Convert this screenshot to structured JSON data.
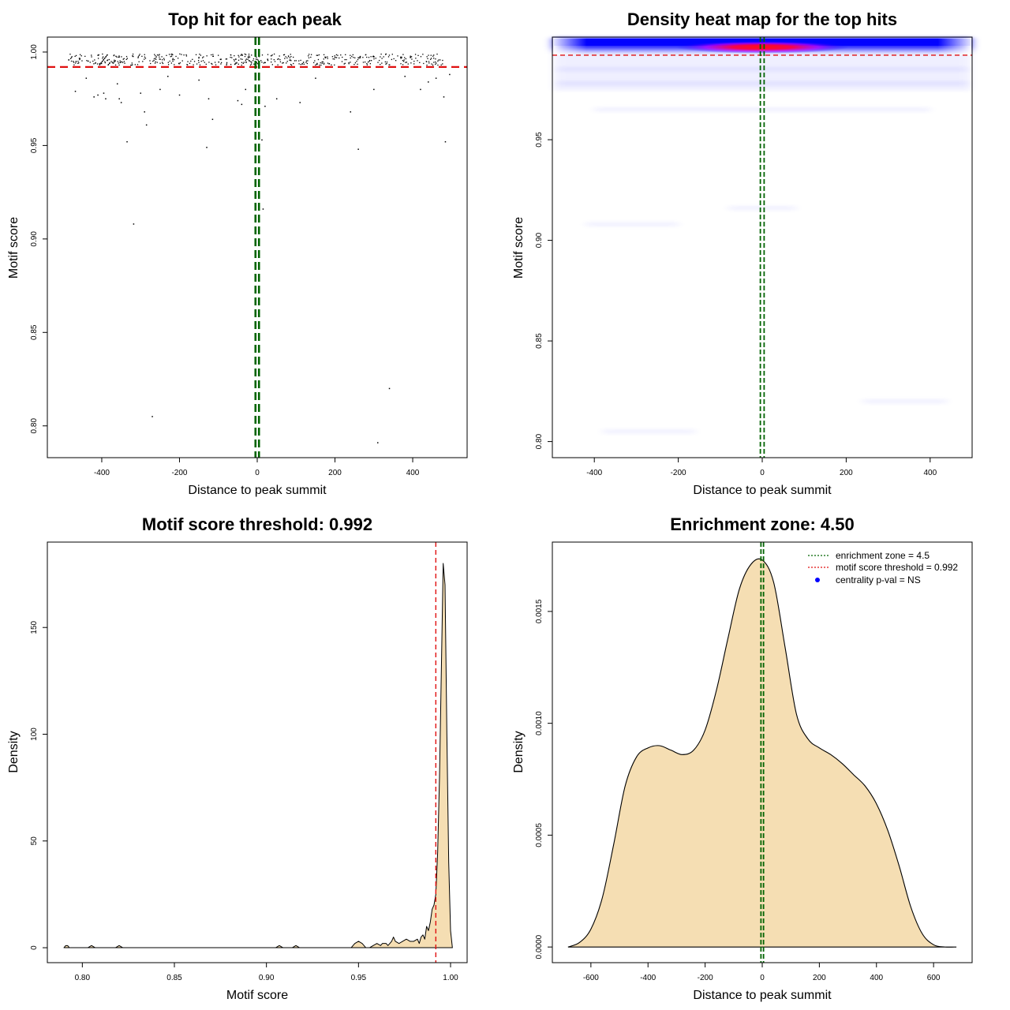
{
  "colors": {
    "threshold_line": "#e01010",
    "zone_line": "#006400",
    "density_fill": "#f5deb3",
    "heat_low": "#0000ff",
    "heat_high": "#ff0000",
    "centrality_dot": "#0000ff"
  },
  "chart_data": [
    {
      "id": "p1",
      "type": "scatter",
      "title": "Top hit for each peak",
      "xlabel": "Distance to peak summit",
      "ylabel": "Motif score",
      "xlim": [
        -540,
        540
      ],
      "ylim": [
        0.783,
        1.008
      ],
      "xticks": [
        -400,
        -200,
        0,
        200,
        400
      ],
      "yticks": [
        0.8,
        0.85,
        0.9,
        0.95,
        1.0
      ],
      "xtick_labels": [
        "-400",
        "-200",
        "0",
        "200",
        "400"
      ],
      "ytick_labels": [
        "0.80",
        "0.85",
        "0.90",
        "0.95",
        "1.00"
      ],
      "threshold": 0.992,
      "zone": [
        -4.5,
        4.5
      ],
      "points": [
        [
          -468,
          0.979
        ],
        [
          -420,
          0.976
        ],
        [
          -410,
          0.977
        ],
        [
          -395,
          0.978
        ],
        [
          -390,
          0.975
        ],
        [
          -360,
          0.983
        ],
        [
          -355,
          0.975
        ],
        [
          -350,
          0.973
        ],
        [
          -335,
          0.952
        ],
        [
          -318,
          0.908
        ],
        [
          -300,
          0.978
        ],
        [
          -290,
          0.968
        ],
        [
          -285,
          0.961
        ],
        [
          -270,
          0.805
        ],
        [
          -250,
          0.98
        ],
        [
          -200,
          0.977
        ],
        [
          -130,
          0.949
        ],
        [
          -125,
          0.975
        ],
        [
          -115,
          0.964
        ],
        [
          -50,
          0.974
        ],
        [
          -40,
          0.972
        ],
        [
          -30,
          0.98
        ],
        [
          -5,
          0.968
        ],
        [
          5,
          0.976
        ],
        [
          12,
          0.953
        ],
        [
          15,
          0.916
        ],
        [
          20,
          0.971
        ],
        [
          50,
          0.975
        ],
        [
          110,
          0.973
        ],
        [
          240,
          0.968
        ],
        [
          260,
          0.948
        ],
        [
          300,
          0.98
        ],
        [
          310,
          0.791
        ],
        [
          340,
          0.82
        ],
        [
          420,
          0.98
        ],
        [
          460,
          0.986
        ],
        [
          480,
          0.976
        ],
        [
          484,
          0.952
        ],
        [
          495,
          0.988
        ],
        [
          440,
          0.984
        ],
        [
          380,
          0.987
        ],
        [
          150,
          0.986
        ],
        [
          -150,
          0.985
        ],
        [
          -230,
          0.987
        ],
        [
          -440,
          0.986
        ]
      ]
    },
    {
      "id": "p2",
      "type": "heatmap",
      "title": "Density heat map for the top hits",
      "xlabel": "Distance to peak summit",
      "ylabel": "Motif score",
      "xlim": [
        -500,
        500
      ],
      "ylim": [
        0.792,
        1.001
      ],
      "xticks": [
        -400,
        -200,
        0,
        200,
        400
      ],
      "yticks": [
        0.8,
        0.85,
        0.9,
        0.95
      ],
      "xtick_labels": [
        "-400",
        "-200",
        "0",
        "200",
        "400"
      ],
      "ytick_labels": [
        "0.80",
        "0.85",
        "0.90",
        "0.95"
      ],
      "threshold": 0.992,
      "zone": [
        -4.5,
        4.5
      ],
      "hotspot": {
        "x": 0,
        "y": 0.996
      },
      "faint_bands": [
        {
          "x0": -490,
          "x1": 490,
          "y": 0.985
        },
        {
          "x0": -490,
          "x1": 490,
          "y": 0.978
        },
        {
          "x0": -400,
          "x1": 400,
          "y": 0.965
        },
        {
          "x0": -420,
          "x1": -200,
          "y": 0.908
        },
        {
          "x0": -380,
          "x1": -160,
          "y": 0.805
        },
        {
          "x0": 240,
          "x1": 440,
          "y": 0.82
        },
        {
          "x0": -80,
          "x1": 80,
          "y": 0.916
        }
      ]
    },
    {
      "id": "p3",
      "type": "area",
      "title": "Motif score threshold: 0.992",
      "xlabel": "Motif score",
      "ylabel": "Density",
      "xlim": [
        0.781,
        1.009
      ],
      "ylim": [
        -7,
        190
      ],
      "xticks": [
        0.8,
        0.85,
        0.9,
        0.95,
        1.0
      ],
      "yticks": [
        0,
        50,
        100,
        150
      ],
      "xtick_labels": [
        "0.80",
        "0.85",
        "0.90",
        "0.95",
        "1.00"
      ],
      "ytick_labels": [
        "0",
        "50",
        "100",
        "150"
      ],
      "threshold": 0.992,
      "x": [
        0.79,
        0.791,
        0.792,
        0.793,
        0.803,
        0.805,
        0.807,
        0.818,
        0.82,
        0.822,
        0.905,
        0.907,
        0.909,
        0.914,
        0.916,
        0.918,
        0.946,
        0.948,
        0.95,
        0.952,
        0.954,
        0.956,
        0.958,
        0.96,
        0.962,
        0.963,
        0.965,
        0.966,
        0.967,
        0.968,
        0.969,
        0.97,
        0.972,
        0.974,
        0.976,
        0.978,
        0.98,
        0.982,
        0.983,
        0.984,
        0.985,
        0.986,
        0.987,
        0.988,
        0.989,
        0.99,
        0.991,
        0.992,
        0.993,
        0.994,
        0.995,
        0.996,
        0.997,
        0.998,
        0.999,
        1.0,
        1.001
      ],
      "y": [
        0,
        1,
        1,
        0,
        0,
        1,
        0,
        0,
        1,
        0,
        0,
        1,
        0,
        0,
        1,
        0,
        0,
        2,
        3,
        2,
        0,
        0,
        1,
        2,
        1,
        2,
        2,
        1,
        2,
        3,
        5,
        3,
        2,
        3,
        4,
        3,
        3,
        4,
        2,
        5,
        6,
        4,
        10,
        8,
        12,
        18,
        20,
        25,
        45,
        80,
        130,
        180,
        170,
        100,
        40,
        8,
        0
      ]
    },
    {
      "id": "p4",
      "type": "area",
      "title": "Enrichment zone: 4.50",
      "xlabel": "Distance to peak summit",
      "ylabel": "Density",
      "xlim": [
        -735,
        735
      ],
      "ylim": [
        -7e-05,
        0.00181
      ],
      "xticks": [
        -600,
        -400,
        -200,
        0,
        200,
        400,
        600
      ],
      "yticks": [
        0,
        0.0005,
        0.001,
        0.0015
      ],
      "xtick_labels": [
        "-600",
        "-400",
        "-200",
        "0",
        "200",
        "400",
        "600"
      ],
      "ytick_labels": [
        "0.0000",
        "0.0005",
        "0.0010",
        "0.0015"
      ],
      "zone": [
        -4.5,
        4.5
      ],
      "x": [
        -680,
        -640,
        -600,
        -560,
        -520,
        -480,
        -440,
        -400,
        -360,
        -320,
        -280,
        -240,
        -200,
        -160,
        -120,
        -80,
        -40,
        0,
        40,
        80,
        120,
        160,
        200,
        240,
        280,
        320,
        360,
        400,
        440,
        480,
        520,
        560,
        600,
        640,
        680
      ],
      "y": [
        0.0,
        2e-05,
        8e-05,
        0.00022,
        0.00046,
        0.00072,
        0.00085,
        0.00089,
        0.0009,
        0.00088,
        0.00086,
        0.00088,
        0.00097,
        0.00115,
        0.00138,
        0.0016,
        0.00171,
        0.00173,
        0.00163,
        0.00134,
        0.00104,
        0.00093,
        0.00089,
        0.00086,
        0.00082,
        0.00077,
        0.00072,
        0.00064,
        0.00052,
        0.00036,
        0.00018,
        6e-05,
        1e-05,
        0.0,
        0.0
      ],
      "legend": [
        {
          "label": "enrichment zone = 4.5",
          "kind": "dotted-line",
          "color": "#006400"
        },
        {
          "label": "motif score threshold = 0.992",
          "kind": "dotted-line",
          "color": "#e01010"
        },
        {
          "label": "centrality p-val = NS",
          "kind": "dot",
          "color": "#0000ff"
        }
      ]
    }
  ]
}
